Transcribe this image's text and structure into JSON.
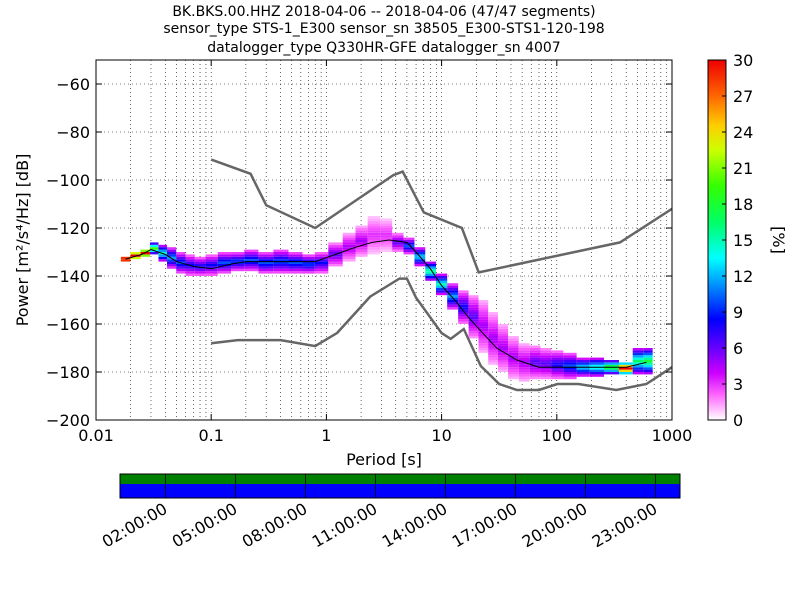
{
  "title": {
    "line1": "BK.BKS.00.HHZ   2018-04-06 -- 2018-04-06  (47/47 segments)",
    "line2": "sensor_type STS-1_E300 sensor_sn 38505_E300-STS1-120-198",
    "line3": "datalogger_type Q330HR-GFE datalogger_sn 4007"
  },
  "chart_data": [
    {
      "type": "heatmap",
      "xlabel": "Period [s]",
      "ylabel": "Power [m²/s⁴/Hz] [dB]",
      "xscale": "log",
      "xlim": [
        0.01,
        1000
      ],
      "ylim": [
        -200,
        -50
      ],
      "x_ticks": [
        0.01,
        0.1,
        1,
        10,
        100,
        1000
      ],
      "x_tick_labels": [
        "0.01",
        "0.1",
        "1",
        "10",
        "100",
        "1000"
      ],
      "y_ticks": [
        -200,
        -180,
        -160,
        -140,
        -120,
        -100,
        -80,
        -60
      ],
      "y_tick_labels": [
        "−200",
        "−180",
        "−160",
        "−140",
        "−120",
        "−100",
        "−80",
        "−60"
      ],
      "grid": true,
      "colorbar": {
        "label": "[%]",
        "min": 0,
        "max": 30,
        "ticks": [
          0,
          3,
          6,
          9,
          12,
          15,
          18,
          21,
          24,
          27,
          30
        ],
        "colormap": "pqlx"
      },
      "noise_models": {
        "high": {
          "x": [
            0.1,
            0.22,
            0.3,
            0.8,
            3.8,
            4.6,
            7,
            15,
            21,
            354,
            1000
          ],
          "y": [
            -91.5,
            -97.4,
            -110.5,
            -120,
            -98,
            -96.5,
            -113.5,
            -120,
            -138.5,
            -126,
            -112
          ]
        },
        "low": {
          "x": [
            0.1,
            0.17,
            0.4,
            0.8,
            1.24,
            2.4,
            4.3,
            5,
            6,
            10,
            12,
            15.6,
            21.9,
            31.6,
            45,
            70,
            101,
            154,
            328,
            600,
            1000
          ],
          "y": [
            -168,
            -166.7,
            -166.7,
            -169.2,
            -163.7,
            -148.6,
            -141.1,
            -141.1,
            -149,
            -163.8,
            -166.2,
            -162.1,
            -177.5,
            -185,
            -187.5,
            -187.5,
            -185,
            -185,
            -187.5,
            -185,
            -178
          ]
        }
      },
      "mean": {
        "x": [
          0.018,
          0.025,
          0.03,
          0.04,
          0.05,
          0.07,
          0.1,
          0.15,
          0.2,
          0.3,
          0.5,
          0.8,
          1.2,
          1.8,
          2.5,
          3.5,
          5,
          6,
          8,
          10,
          13,
          17,
          22,
          30,
          45,
          70,
          100,
          150,
          250,
          400,
          600
        ],
        "y": [
          -133,
          -131,
          -129,
          -131,
          -134,
          -136,
          -137,
          -135,
          -134,
          -134,
          -134,
          -134,
          -131,
          -128,
          -126,
          -125,
          -126,
          -130,
          -137,
          -144,
          -150,
          -157,
          -163,
          -170,
          -175,
          -178,
          -178,
          -178,
          -178,
          -178,
          -176
        ]
      },
      "density": [
        {
          "x": 0.018,
          "lo": -134,
          "hi": -132,
          "pct": 30
        },
        {
          "x": 0.022,
          "lo": -133,
          "hi": -130,
          "pct": 30
        },
        {
          "x": 0.027,
          "lo": -132,
          "hi": -129,
          "pct": 28
        },
        {
          "x": 0.032,
          "lo": -131,
          "hi": -126,
          "pct": 12
        },
        {
          "x": 0.038,
          "lo": -134,
          "hi": -127,
          "pct": 9
        },
        {
          "x": 0.045,
          "lo": -137,
          "hi": -128,
          "pct": 7
        },
        {
          "x": 0.055,
          "lo": -139,
          "hi": -130,
          "pct": 6
        },
        {
          "x": 0.065,
          "lo": -140,
          "hi": -131,
          "pct": 5
        },
        {
          "x": 0.08,
          "lo": -140,
          "hi": -132,
          "pct": 5
        },
        {
          "x": 0.1,
          "lo": -140,
          "hi": -131,
          "pct": 5
        },
        {
          "x": 0.13,
          "lo": -139,
          "hi": -130,
          "pct": 6
        },
        {
          "x": 0.17,
          "lo": -138,
          "hi": -130,
          "pct": 6
        },
        {
          "x": 0.22,
          "lo": -138,
          "hi": -129,
          "pct": 6
        },
        {
          "x": 0.3,
          "lo": -139,
          "hi": -130,
          "pct": 6
        },
        {
          "x": 0.4,
          "lo": -139,
          "hi": -129,
          "pct": 6
        },
        {
          "x": 0.55,
          "lo": -139,
          "hi": -130,
          "pct": 6
        },
        {
          "x": 0.7,
          "lo": -139,
          "hi": -131,
          "pct": 6
        },
        {
          "x": 0.9,
          "lo": -139,
          "hi": -130,
          "pct": 5
        },
        {
          "x": 1.2,
          "lo": -136,
          "hi": -126,
          "pct": 4
        },
        {
          "x": 1.6,
          "lo": -134,
          "hi": -122,
          "pct": 3
        },
        {
          "x": 2.0,
          "lo": -132,
          "hi": -119,
          "pct": 3
        },
        {
          "x": 2.6,
          "lo": -131,
          "hi": -115,
          "pct": 2
        },
        {
          "x": 3.3,
          "lo": -130,
          "hi": -116,
          "pct": 2
        },
        {
          "x": 4.2,
          "lo": -130,
          "hi": -122,
          "pct": 4
        },
        {
          "x": 5.2,
          "lo": -131,
          "hi": -124,
          "pct": 6
        },
        {
          "x": 6.5,
          "lo": -136,
          "hi": -128,
          "pct": 8
        },
        {
          "x": 8,
          "lo": -142,
          "hi": -134,
          "pct": 10
        },
        {
          "x": 10,
          "lo": -148,
          "hi": -139,
          "pct": 9
        },
        {
          "x": 12.5,
          "lo": -154,
          "hi": -143,
          "pct": 7
        },
        {
          "x": 15.5,
          "lo": -160,
          "hi": -146,
          "pct": 5
        },
        {
          "x": 19,
          "lo": -166,
          "hi": -148,
          "pct": 4
        },
        {
          "x": 23,
          "lo": -172,
          "hi": -150,
          "pct": 3
        },
        {
          "x": 28,
          "lo": -177,
          "hi": -155,
          "pct": 3
        },
        {
          "x": 34,
          "lo": -180,
          "hi": -160,
          "pct": 3
        },
        {
          "x": 42,
          "lo": -183,
          "hi": -165,
          "pct": 3
        },
        {
          "x": 52,
          "lo": -184,
          "hi": -168,
          "pct": 3
        },
        {
          "x": 65,
          "lo": -183,
          "hi": -169,
          "pct": 4
        },
        {
          "x": 80,
          "lo": -183,
          "hi": -170,
          "pct": 4
        },
        {
          "x": 100,
          "lo": -183,
          "hi": -171,
          "pct": 5
        },
        {
          "x": 130,
          "lo": -183,
          "hi": -172,
          "pct": 6
        },
        {
          "x": 170,
          "lo": -182,
          "hi": -174,
          "pct": 8
        },
        {
          "x": 220,
          "lo": -182,
          "hi": -174,
          "pct": 9
        },
        {
          "x": 300,
          "lo": -181,
          "hi": -175,
          "pct": 12
        },
        {
          "x": 400,
          "lo": -181,
          "hi": -176,
          "pct": 22
        },
        {
          "x": 520,
          "lo": -181,
          "hi": -170,
          "pct": 10
        },
        {
          "x": 620,
          "lo": -181,
          "hi": -170,
          "pct": 11
        }
      ]
    },
    {
      "type": "table",
      "description_role": "data coverage timeline",
      "time_ticks": [
        "02:00:00",
        "05:00:00",
        "08:00:00",
        "11:00:00",
        "14:00:00",
        "17:00:00",
        "20:00:00",
        "23:00:00"
      ],
      "segments": 47,
      "coverage_colors": {
        "top": "#008000",
        "bottom": "#0000ff"
      }
    }
  ]
}
